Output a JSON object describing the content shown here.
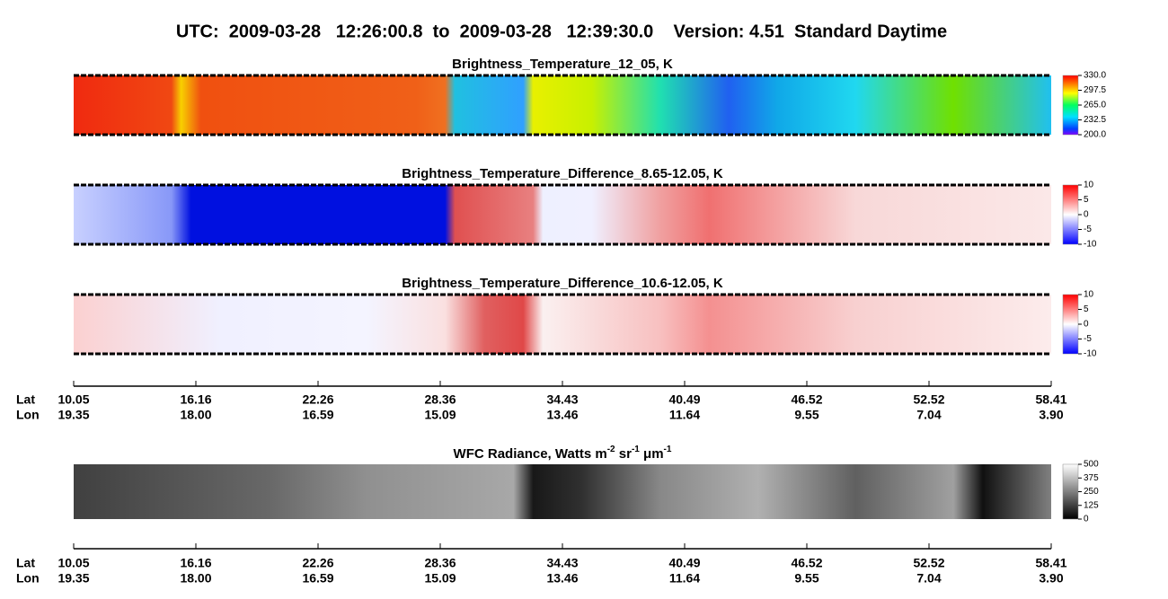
{
  "title": "UTC:  2009-03-28   12:26:00.8  to  2009-03-28   12:39:30.0    Version: 4.51  Standard Daytime",
  "panels": [
    {
      "title": "Brightness_Temperature_12_05, K",
      "range": [
        200,
        330
      ],
      "ticks": [
        {
          "value": 200,
          "label": "200.0"
        },
        {
          "value": 232.5,
          "label": "232.5"
        },
        {
          "value": 265,
          "label": "265.0"
        },
        {
          "value": 297.5,
          "label": "297.5"
        },
        {
          "value": 330,
          "label": "330.0"
        }
      ]
    },
    {
      "title": "Brightness_Temperature_Difference_8.65-12.05, K",
      "range": [
        -10,
        10
      ],
      "ticks": [
        -10,
        -5,
        0,
        5,
        10
      ]
    },
    {
      "title": "Brightness_Temperature_Difference_10.6-12.05, K",
      "range": [
        -10,
        10
      ],
      "ticks": [
        -10,
        -5,
        0,
        5,
        10
      ]
    },
    {
      "title_parts": [
        "WFC Radiance, Watts m",
        "-2",
        " sr",
        "-1",
        " μm",
        "-1"
      ],
      "range": [
        0,
        500
      ],
      "ticks": [
        0,
        125,
        250,
        375,
        500
      ]
    }
  ],
  "axis": {
    "lat_label": "Lat",
    "lon_label": "Lon",
    "lat": [
      "10.05",
      "16.16",
      "22.26",
      "28.36",
      "34.43",
      "40.49",
      "46.52",
      "52.52",
      "58.41"
    ],
    "lon": [
      "19.35",
      "18.00",
      "16.59",
      "15.09",
      "13.46",
      "11.64",
      "9.55",
      "7.04",
      "3.90"
    ]
  }
}
